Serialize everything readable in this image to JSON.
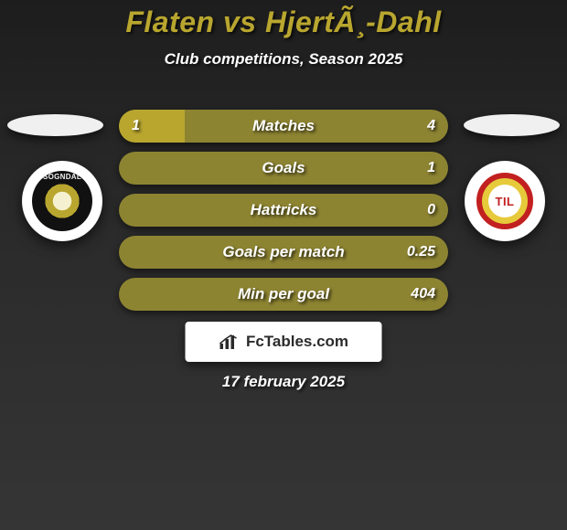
{
  "title": "Flaten vs HjertÃ¸-Dahl",
  "subtitle": "Club competitions, Season 2025",
  "date": "17 february 2025",
  "footer_brand": "FcTables.com",
  "colors": {
    "accent": "#b9a62f",
    "bar_base": "#8d8432",
    "bar_fill": "#b9a62f",
    "text": "#ffffff",
    "badge_bg": "#ffffff",
    "badge_text": "#2b2b2b"
  },
  "left_team": {
    "name": "Sogndal",
    "crest_text": "SOGNDAL"
  },
  "right_team": {
    "name": "Tromsø",
    "crest_text": "TIL"
  },
  "rows": [
    {
      "label": "Matches",
      "left": "1",
      "right": "4",
      "fill_pct": 20
    },
    {
      "label": "Goals",
      "left": "",
      "right": "1",
      "fill_pct": 0
    },
    {
      "label": "Hattricks",
      "left": "",
      "right": "0",
      "fill_pct": 0
    },
    {
      "label": "Goals per match",
      "left": "",
      "right": "0.25",
      "fill_pct": 0
    },
    {
      "label": "Min per goal",
      "left": "",
      "right": "404",
      "fill_pct": 0
    }
  ],
  "typography": {
    "title_fontsize": 32,
    "subtitle_fontsize": 17,
    "bar_label_fontsize": 17,
    "bar_value_fontsize": 16
  }
}
